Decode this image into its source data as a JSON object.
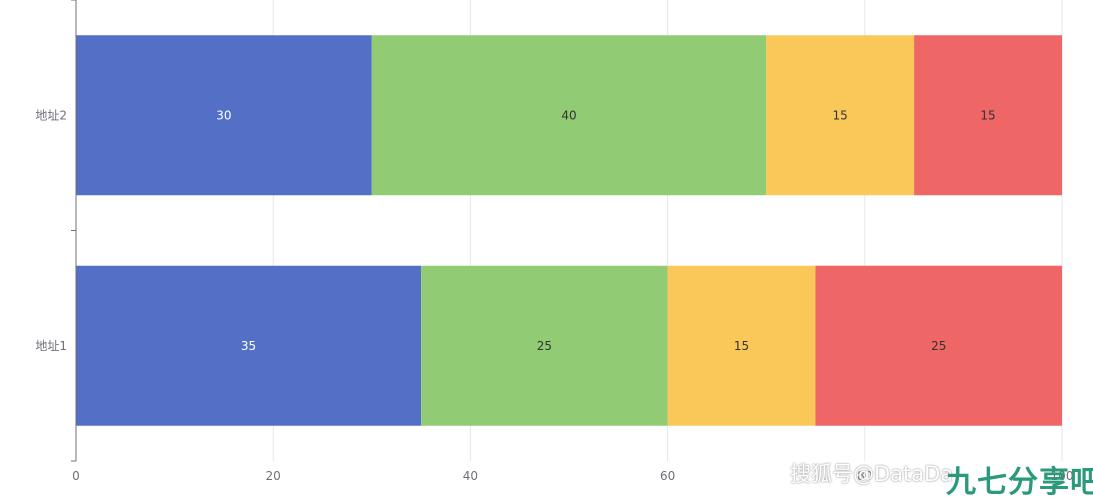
{
  "chart_data": {
    "type": "bar",
    "orientation": "horizontal",
    "stacked": true,
    "categories": [
      "地址1",
      "地址2"
    ],
    "series": [
      {
        "values": [
          35,
          30
        ],
        "color": "#5470c6",
        "label_color": "#ffffff"
      },
      {
        "values": [
          25,
          40
        ],
        "color": "#91cc75",
        "label_color": "#333333"
      },
      {
        "values": [
          15,
          15
        ],
        "color": "#fac858",
        "label_color": "#333333"
      },
      {
        "values": [
          25,
          15
        ],
        "color": "#ee6666",
        "label_color": "#333333"
      }
    ],
    "xlim": [
      0,
      100
    ],
    "xticks": [
      0,
      20,
      40,
      60,
      80,
      100
    ],
    "grid": true,
    "legend": "none"
  },
  "watermark": {
    "text": "搜狐号@DataDa",
    "logo": "九七分享吧"
  }
}
